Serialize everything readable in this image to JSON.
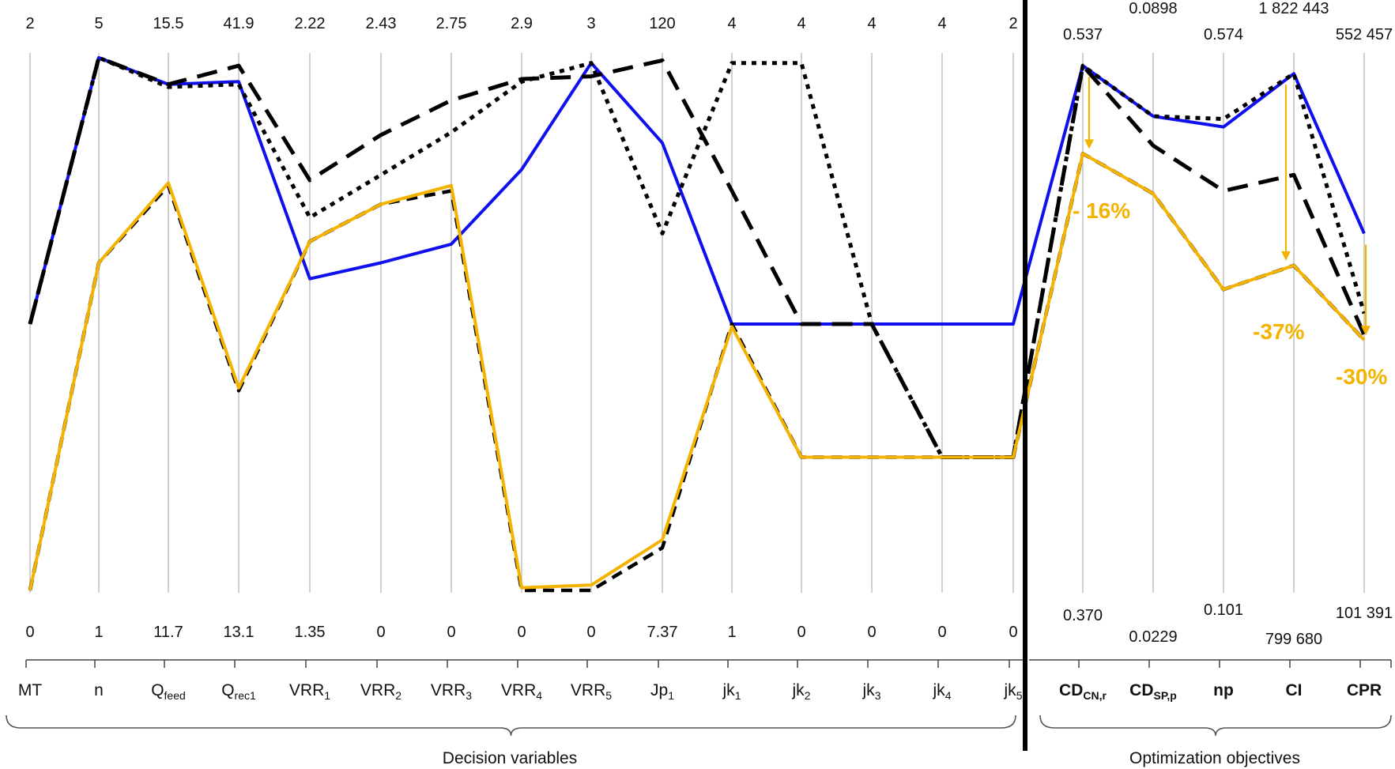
{
  "chart_data": {
    "type": "line",
    "subtype": "parallel-coordinates",
    "axes": [
      {
        "key": "MT",
        "label": "MT",
        "sub": "",
        "bold": false,
        "max": "2",
        "min": "0"
      },
      {
        "key": "n",
        "label": "n",
        "sub": "",
        "bold": false,
        "max": "5",
        "min": "1"
      },
      {
        "key": "Qfeed",
        "label": "Q",
        "sub": "feed",
        "bold": false,
        "max": "15.5",
        "min": "11.7"
      },
      {
        "key": "Qrec1",
        "label": "Q",
        "sub": "rec1",
        "bold": false,
        "max": "41.9",
        "min": "13.1"
      },
      {
        "key": "VRR1",
        "label": "VRR",
        "sub": "1",
        "bold": false,
        "max": "2.22",
        "min": "1.35"
      },
      {
        "key": "VRR2",
        "label": "VRR",
        "sub": "2",
        "bold": false,
        "max": "2.43",
        "min": "0"
      },
      {
        "key": "VRR3",
        "label": "VRR",
        "sub": "3",
        "bold": false,
        "max": "2.75",
        "min": "0"
      },
      {
        "key": "VRR4",
        "label": "VRR",
        "sub": "4",
        "bold": false,
        "max": "2.9",
        "min": "0"
      },
      {
        "key": "VRR5",
        "label": "VRR",
        "sub": "5",
        "bold": false,
        "max": "3",
        "min": "0"
      },
      {
        "key": "Jp1",
        "label": "Jp",
        "sub": "1",
        "bold": false,
        "max": "120",
        "min": "7.37"
      },
      {
        "key": "jk1",
        "label": "jk",
        "sub": "1",
        "bold": false,
        "max": "4",
        "min": "1"
      },
      {
        "key": "jk2",
        "label": "jk",
        "sub": "2",
        "bold": false,
        "max": "4",
        "min": "0"
      },
      {
        "key": "jk3",
        "label": "jk",
        "sub": "3",
        "bold": false,
        "max": "4",
        "min": "0"
      },
      {
        "key": "jk4",
        "label": "jk",
        "sub": "4",
        "bold": false,
        "max": "4",
        "min": "0"
      },
      {
        "key": "jk5",
        "label": "jk",
        "sub": "5",
        "bold": false,
        "max": "2",
        "min": "0"
      },
      {
        "key": "CDCNr",
        "label": "CD",
        "sub": "CN,r",
        "bold": true,
        "max": "0.537",
        "min": "0.370"
      },
      {
        "key": "CDSPp",
        "label": "CD",
        "sub": "SP,p",
        "bold": true,
        "max": "0.0898",
        "min": "0.0229"
      },
      {
        "key": "np",
        "label": "np",
        "sub": "",
        "bold": true,
        "max": "0.574",
        "min": "0.101"
      },
      {
        "key": "CI",
        "label": "CI",
        "sub": "",
        "bold": true,
        "max": "1 822 443",
        "min": "799 680"
      },
      {
        "key": "CPR",
        "label": "CPR",
        "sub": "",
        "bold": true,
        "max": "552 457",
        "min": "101 391"
      }
    ],
    "series": [
      {
        "color": "#1010EE",
        "dash": "solid",
        "values": [
          0.5,
          1.0,
          0.95,
          0.955,
          0.585,
          0.615,
          0.65,
          0.79,
          0.99,
          0.84,
          0.5,
          0.5,
          0.5,
          0.5,
          0.5,
          0.985,
          0.89,
          0.87,
          0.97,
          0.67
        ]
      },
      {
        "color": "#000000",
        "dash": "dotted",
        "values": [
          0.5,
          1.0,
          0.945,
          0.95,
          0.7,
          0.78,
          0.86,
          0.955,
          0.99,
          0.67,
          0.99,
          0.99,
          0.5,
          0.25,
          0.25,
          0.985,
          0.89,
          0.885,
          0.97,
          0.52
        ]
      },
      {
        "color": "#000000",
        "dash": "long-dash",
        "values": [
          0.5,
          1.0,
          0.95,
          0.985,
          0.77,
          0.855,
          0.92,
          0.96,
          0.965,
          0.995,
          0.75,
          0.5,
          0.5,
          0.25,
          0.25,
          0.985,
          0.835,
          0.75,
          0.78,
          0.48
        ]
      },
      {
        "color": "#000000",
        "dash": "dashed",
        "values": [
          0.0,
          0.615,
          0.76,
          0.375,
          0.655,
          0.725,
          0.75,
          0.0,
          0.0,
          0.08,
          0.5,
          0.25,
          0.25,
          0.25,
          0.25,
          0.82,
          0.745,
          0.565,
          0.61,
          0.47
        ]
      },
      {
        "color": "#F5B301",
        "dash": "solid",
        "values": [
          0.0,
          0.615,
          0.765,
          0.38,
          0.655,
          0.725,
          0.76,
          0.005,
          0.01,
          0.095,
          0.495,
          0.25,
          0.25,
          0.25,
          0.25,
          0.82,
          0.745,
          0.565,
          0.61,
          0.47
        ]
      }
    ],
    "annotations": [
      {
        "text": "- 16%",
        "axis": "CDCNr"
      },
      {
        "text": "-37%",
        "axis": "CI"
      },
      {
        "text": "-30%",
        "axis": "CPR"
      }
    ],
    "groups": [
      {
        "label": "Decision variables"
      },
      {
        "label": "Optimization objectives"
      }
    ]
  }
}
